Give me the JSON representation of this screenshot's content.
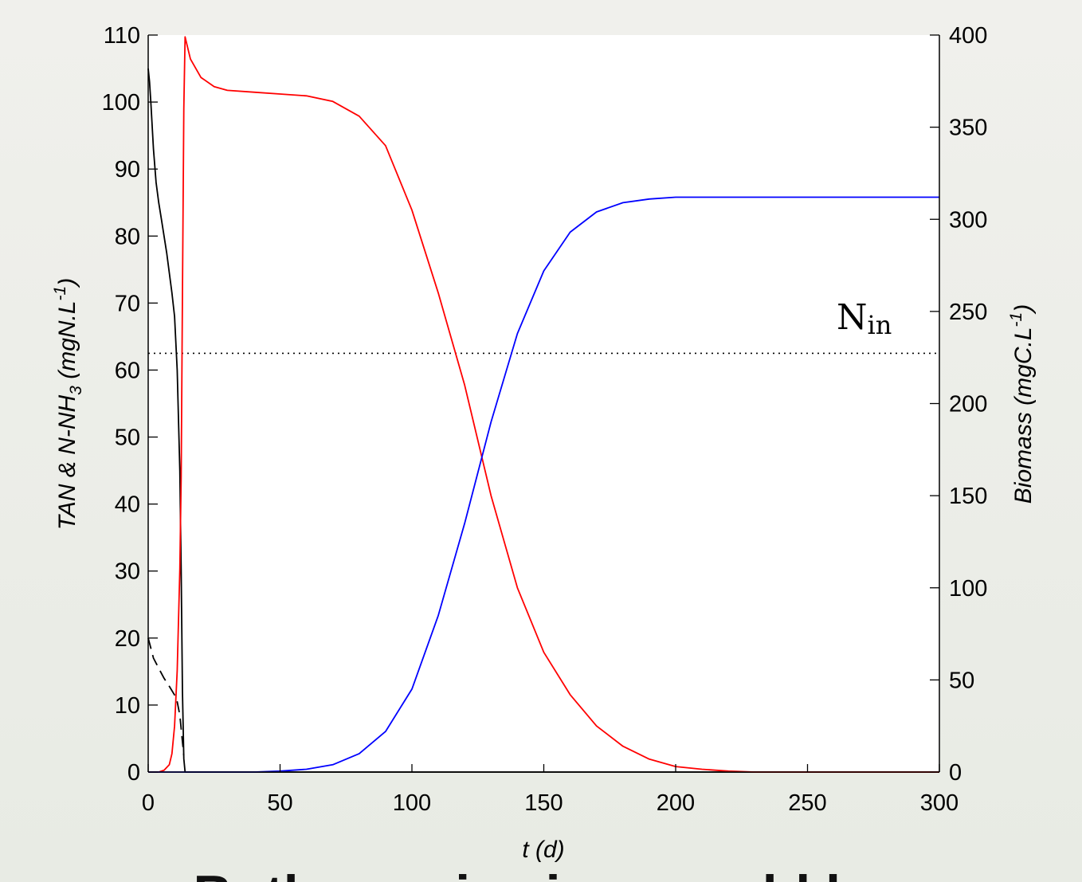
{
  "slide": {
    "caption_partial": "Both species issue cold be"
  },
  "chart_data": {
    "type": "line",
    "title": "",
    "xlabel": "t (d)",
    "ylabel_left": "TAN & N-NH3 (mgN.L-1)",
    "ylabel_right": "Biomass (mgC.L-1)",
    "xlim": [
      0,
      300
    ],
    "ylim_left": [
      0,
      110
    ],
    "ylim_right": [
      0,
      400
    ],
    "x_ticks": [
      0,
      50,
      100,
      150,
      200,
      250,
      300
    ],
    "y_ticks_left": [
      0,
      10,
      20,
      30,
      40,
      50,
      60,
      70,
      80,
      90,
      100,
      110
    ],
    "y_ticks_right": [
      0,
      50,
      100,
      150,
      200,
      250,
      300,
      350,
      400
    ],
    "grid": false,
    "legend": "none",
    "annotation": {
      "text": "N",
      "subscript": "in",
      "value_left": 62.5
    },
    "series": [
      {
        "axis": "left",
        "color": "#000000",
        "style": "solid",
        "x": [
          0,
          0.5,
          1,
          2,
          3,
          4,
          5,
          6,
          7,
          8,
          9,
          10,
          11,
          12,
          12.5,
          13,
          13.5,
          14,
          20,
          50,
          100,
          150,
          200,
          250,
          300
        ],
        "y": [
          105,
          103,
          100,
          93,
          88,
          85,
          82.5,
          80,
          77.5,
          74.5,
          71.5,
          68,
          60,
          45,
          30,
          12,
          2,
          0,
          0,
          0,
          0,
          0,
          0,
          0,
          0
        ]
      },
      {
        "axis": "left",
        "color": "#000000",
        "style": "dashed",
        "x": [
          0,
          1,
          2,
          4,
          6,
          8,
          10,
          11,
          12,
          13,
          13.5
        ],
        "y": [
          20,
          18.5,
          17,
          15.5,
          14,
          12.8,
          11.5,
          10.5,
          8.5,
          4.5,
          2.5
        ]
      },
      {
        "axis": "right",
        "color": "#ff0000",
        "style": "solid",
        "x": [
          0,
          4,
          6,
          8,
          9,
          10,
          11,
          12,
          12.5,
          13,
          13.5,
          14,
          16,
          20,
          25,
          30,
          40,
          50,
          60,
          70,
          80,
          90,
          100,
          110,
          120,
          130,
          140,
          150,
          160,
          170,
          180,
          190,
          200,
          210,
          220,
          230,
          250,
          300
        ],
        "y": [
          0,
          0,
          1,
          4,
          10,
          25,
          55,
          110,
          160,
          260,
          360,
          399,
          387,
          377,
          372,
          370,
          369,
          368,
          367,
          364,
          356,
          340,
          305,
          260,
          210,
          150,
          100,
          65,
          42,
          25,
          14,
          7,
          3,
          1.5,
          0.5,
          0,
          0,
          0
        ]
      },
      {
        "axis": "right",
        "color": "#0000ff",
        "style": "solid",
        "x": [
          0,
          20,
          40,
          50,
          60,
          70,
          80,
          90,
          100,
          110,
          120,
          130,
          140,
          150,
          160,
          170,
          180,
          190,
          200,
          220,
          250,
          300
        ],
        "y": [
          0,
          0,
          0,
          0.5,
          1.5,
          4,
          10,
          22,
          45,
          85,
          135,
          190,
          238,
          272,
          293,
          304,
          309,
          311,
          312,
          312,
          312,
          312
        ]
      }
    ]
  }
}
